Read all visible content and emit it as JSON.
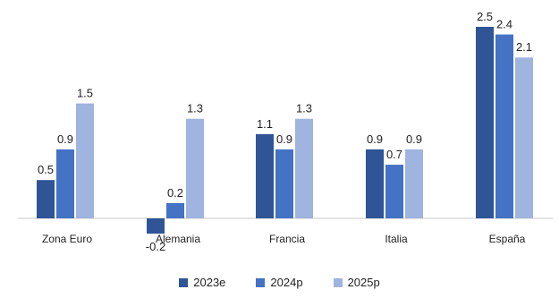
{
  "chart_data": {
    "type": "bar",
    "categories": [
      "Zona Euro",
      "Alemania",
      "Francia",
      "Italia",
      "España"
    ],
    "series": [
      {
        "name": "2023e",
        "values": [
          0.5,
          -0.2,
          1.1,
          0.9,
          2.5
        ],
        "color": "#2f5597"
      },
      {
        "name": "2024p",
        "values": [
          0.9,
          0.2,
          0.9,
          0.7,
          2.4
        ],
        "color": "#4472c4"
      },
      {
        "name": "2025p",
        "values": [
          1.5,
          1.3,
          1.3,
          0.9,
          2.1
        ],
        "color": "#9fb4de"
      }
    ],
    "data_labels": [
      [
        "0.5",
        "-0.2",
        "1.1",
        "0.9",
        "2.5"
      ],
      [
        "0.9",
        "0.2",
        "0.9",
        "0.7",
        "2.4"
      ],
      [
        "1.5",
        "1.3",
        "1.3",
        "0.9",
        "2.1"
      ]
    ],
    "baseline_color": "#c8c8c8",
    "grid": false,
    "legend_position": "bottom"
  }
}
